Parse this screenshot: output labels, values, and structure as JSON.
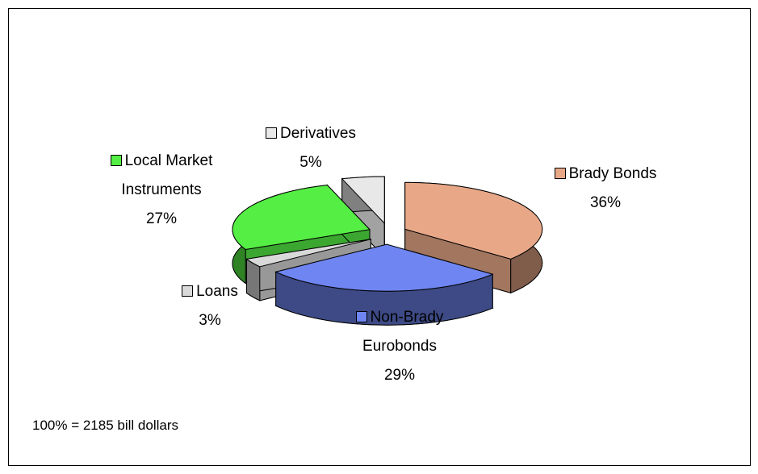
{
  "chart_data": {
    "type": "pie3d",
    "categories": [
      "Brady Bonds",
      "Non-Brady Eurobonds",
      "Loans",
      "Local Market Instruments",
      "Derivatives"
    ],
    "values": [
      36,
      29,
      3,
      27,
      5
    ],
    "value_labels": [
      "36%",
      "29%",
      "3%",
      "27%",
      "5%"
    ],
    "colors": [
      "#e8a888",
      "#6f86f2",
      "#d9d9d9",
      "#55ee44",
      "#e8e8e8"
    ],
    "annotation": "100% = 2185 bill dollars"
  }
}
